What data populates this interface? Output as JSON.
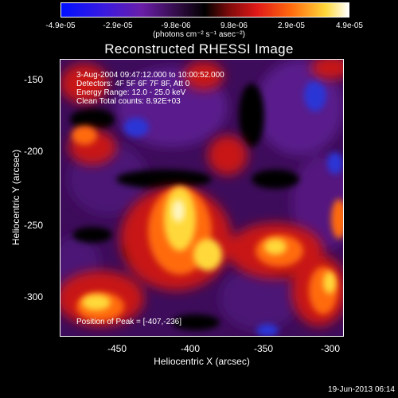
{
  "colorbar": {
    "ticks": [
      "-4.9e-05",
      "-2.9e-05",
      "-9.8e-06",
      "9.8e-06",
      "2.9e-05",
      "4.9e-05"
    ],
    "units": "(photons cm⁻² s⁻¹ asec⁻²)",
    "min": -4.9e-05,
    "max": 4.9e-05
  },
  "title": "Reconstructed RHESSI Image",
  "annotations": {
    "line1": "3-Aug-2004 09:47:12.000 to 10:00:52.000",
    "line2": "Detectors: 4F 5F 6F 7F 8F, Att 0",
    "line3": "Energy Range: 12.0 - 25.0 keV",
    "line4": "Clean     Total counts: 8.92E+03",
    "peak": "Position of Peak = [-407,-236]"
  },
  "axes": {
    "xlabel": "Heliocentric X (arcsec)",
    "ylabel": "Heliocentric Y (arcsec)",
    "xticks": [
      "-450",
      "-400",
      "-350",
      "-300"
    ],
    "yticks": [
      "-150",
      "-200",
      "-250",
      "-300"
    ],
    "xlim": [
      -490,
      -296
    ],
    "ylim": [
      -328,
      -137
    ]
  },
  "footer": "19-Jun-2013 06:14"
}
